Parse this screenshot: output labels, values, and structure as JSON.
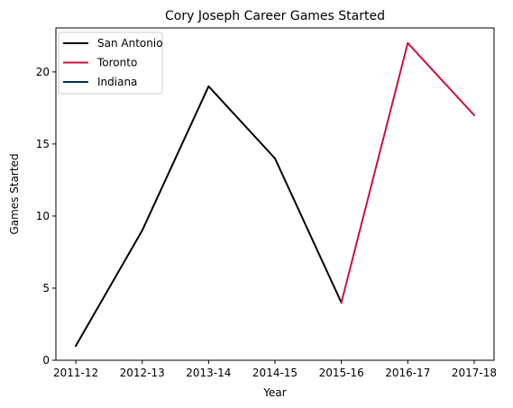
{
  "chart_data": {
    "type": "line",
    "title": "Cory Joseph Career Games Started",
    "xlabel": "Year",
    "ylabel": "Games Started",
    "categories": [
      "2011-12",
      "2012-13",
      "2013-14",
      "2014-15",
      "2015-16",
      "2016-17",
      "2017-18"
    ],
    "ylim": [
      0,
      23.05
    ],
    "yticks": [
      0,
      5,
      10,
      15,
      20
    ],
    "grid": false,
    "legend": "top-left",
    "series": [
      {
        "name": "San Antonio",
        "color": "#000000",
        "points": [
          {
            "x": "2011-12",
            "y": 1
          },
          {
            "x": "2012-13",
            "y": 9
          },
          {
            "x": "2013-14",
            "y": 19
          },
          {
            "x": "2014-15",
            "y": 14
          },
          {
            "x": "2015-16",
            "y": 4
          }
        ]
      },
      {
        "name": "Toronto",
        "color": "#ce1141",
        "points": [
          {
            "x": "2015-16",
            "y": 4
          },
          {
            "x": "2016-17",
            "y": 22
          },
          {
            "x": "2017-18",
            "y": 17
          }
        ]
      },
      {
        "name": "Indiana",
        "color": "#002d62",
        "points": []
      }
    ]
  }
}
